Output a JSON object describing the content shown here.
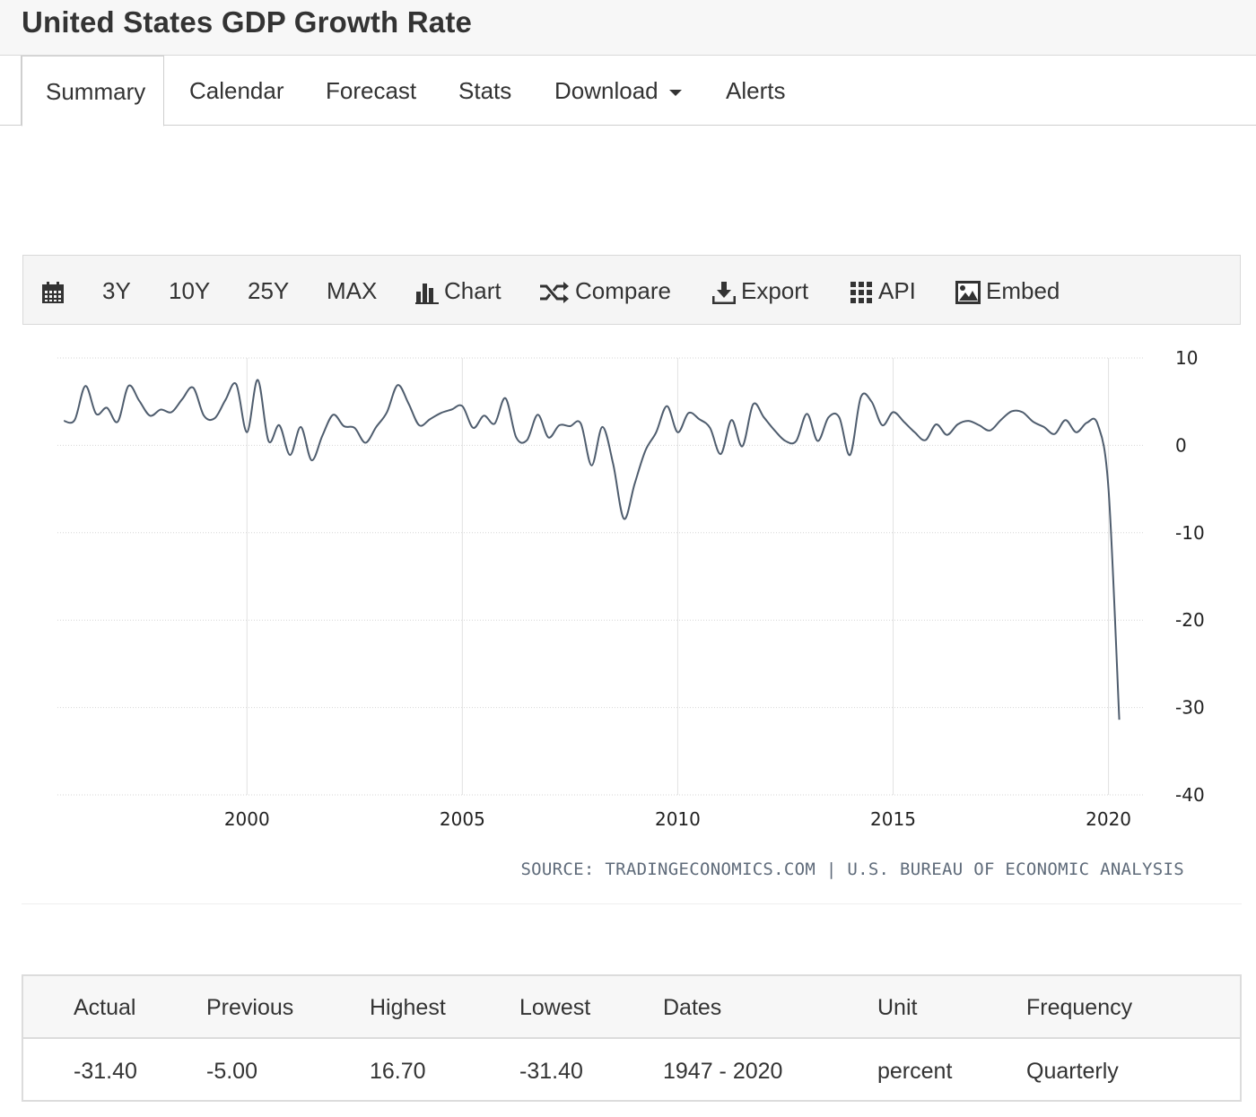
{
  "page": {
    "title": "United States GDP Growth Rate"
  },
  "tabs": [
    {
      "label": "Summary",
      "active": true
    },
    {
      "label": "Calendar"
    },
    {
      "label": "Forecast"
    },
    {
      "label": "Stats"
    },
    {
      "label": "Download",
      "dropdown": true
    },
    {
      "label": "Alerts"
    }
  ],
  "toolbar": {
    "calendar_icon": "calendar-icon",
    "range_3y": "3Y",
    "range_10y": "10Y",
    "range_25y": "25Y",
    "range_max": "MAX",
    "chart_label": "Chart",
    "compare_label": "Compare",
    "export_label": "Export",
    "api_label": "API",
    "embed_label": "Embed"
  },
  "source_text": "SOURCE: TRADINGECONOMICS.COM | U.S. BUREAU OF ECONOMIC ANALYSIS",
  "chart_data": {
    "type": "line",
    "title": "",
    "xlabel": "",
    "ylabel": "",
    "xlim": [
      1995.6,
      2020.8
    ],
    "ylim": [
      -40,
      10
    ],
    "x_ticks": [
      2000,
      2005,
      2010,
      2015,
      2020
    ],
    "y_ticks": [
      10,
      0,
      -10,
      -20,
      -30,
      -40
    ],
    "y_axis_side": "right",
    "grid": true,
    "line_color": "#4f5d6e",
    "series": [
      {
        "name": "",
        "x": [
          1995.75,
          1996,
          1996.25,
          1996.5,
          1996.75,
          1997,
          1997.25,
          1997.5,
          1997.75,
          1998,
          1998.25,
          1998.5,
          1998.75,
          1999,
          1999.25,
          1999.5,
          1999.75,
          2000,
          2000.25,
          2000.5,
          2000.75,
          2001,
          2001.25,
          2001.5,
          2001.75,
          2002,
          2002.25,
          2002.5,
          2002.75,
          2003,
          2003.25,
          2003.5,
          2003.75,
          2004,
          2004.25,
          2004.5,
          2004.75,
          2005,
          2005.25,
          2005.5,
          2005.75,
          2006,
          2006.25,
          2006.5,
          2006.75,
          2007,
          2007.25,
          2007.5,
          2007.75,
          2008,
          2008.25,
          2008.5,
          2008.75,
          2009,
          2009.25,
          2009.5,
          2009.75,
          2010,
          2010.25,
          2010.5,
          2010.75,
          2011,
          2011.25,
          2011.5,
          2011.75,
          2012,
          2012.25,
          2012.5,
          2012.75,
          2013,
          2013.25,
          2013.5,
          2013.75,
          2014,
          2014.25,
          2014.5,
          2014.75,
          2015,
          2015.25,
          2015.5,
          2015.75,
          2016,
          2016.25,
          2016.5,
          2016.75,
          2017,
          2017.25,
          2017.5,
          2017.75,
          2018,
          2018.25,
          2018.5,
          2018.75,
          2019,
          2019.25,
          2019.5,
          2019.75,
          2020,
          2020.25
        ],
        "values": [
          2.8,
          2.9,
          6.8,
          3.6,
          4.3,
          2.7,
          6.8,
          5.1,
          3.4,
          4.1,
          3.8,
          5.3,
          6.6,
          3.4,
          3.1,
          5.2,
          7.0,
          1.5,
          7.5,
          0.5,
          2.3,
          -1.1,
          2.1,
          -1.7,
          1.1,
          3.5,
          2.2,
          2.0,
          0.3,
          2.1,
          3.8,
          6.9,
          4.8,
          2.3,
          3.0,
          3.7,
          4.1,
          4.5,
          2.0,
          3.4,
          2.5,
          5.4,
          0.9,
          0.6,
          3.5,
          0.9,
          2.3,
          2.2,
          2.5,
          -2.3,
          2.1,
          -2.1,
          -8.4,
          -4.4,
          -0.6,
          1.5,
          4.5,
          1.5,
          3.7,
          3.0,
          2.0,
          -1.0,
          2.9,
          -0.1,
          4.7,
          3.2,
          1.7,
          0.5,
          0.5,
          3.6,
          0.5,
          3.2,
          3.2,
          -1.1,
          5.5,
          5.0,
          2.3,
          3.8,
          2.7,
          1.5,
          0.6,
          2.4,
          1.2,
          2.4,
          2.8,
          2.3,
          1.7,
          2.9,
          3.9,
          3.8,
          2.7,
          2.1,
          1.3,
          2.9,
          1.5,
          2.6,
          2.4,
          -5.0,
          -31.4
        ]
      }
    ]
  },
  "stats": {
    "headers": [
      "Actual",
      "Previous",
      "Highest",
      "Lowest",
      "Dates",
      "Unit",
      "Frequency"
    ],
    "values": [
      "-31.40",
      "-5.00",
      "16.70",
      "-31.40",
      "1947 - 2020",
      "percent",
      "Quarterly"
    ]
  }
}
